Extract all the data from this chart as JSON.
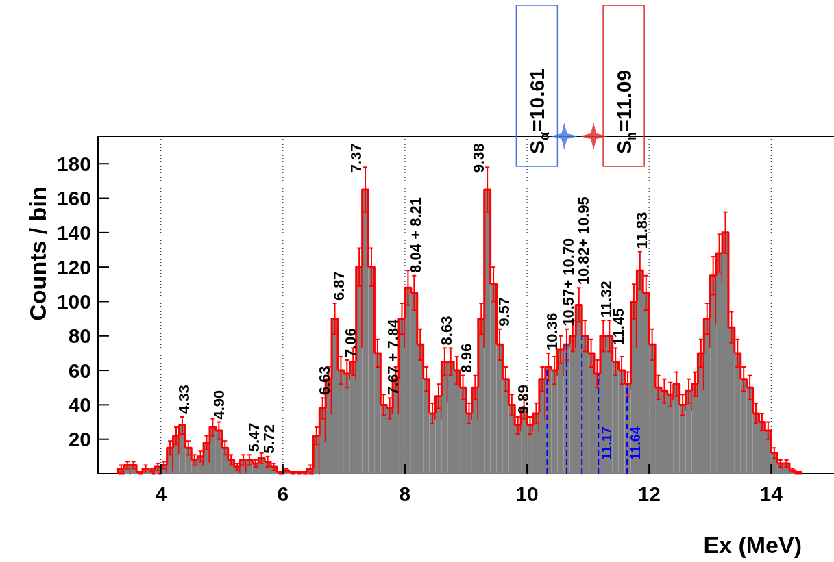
{
  "chart_data": {
    "type": "histogram",
    "xlabel": "Ex (MeV)",
    "ylabel": "Counts / bin",
    "color": "#808080",
    "bins": [
      3.3,
      3.4,
      3.5,
      3.6,
      3.7,
      3.8,
      3.9,
      4.0,
      4.1,
      4.2,
      4.3,
      4.4,
      4.5,
      4.6,
      4.7,
      4.8,
      4.9,
      5.0,
      5.1,
      5.2,
      5.3,
      5.4,
      5.5,
      5.6,
      5.7,
      5.8,
      5.9,
      6.0,
      6.1,
      6.2,
      6.3,
      6.4,
      6.5,
      6.6,
      6.7,
      6.8,
      6.9,
      7.0,
      7.1,
      7.2,
      7.3,
      7.4,
      7.5,
      7.6,
      7.7,
      7.8,
      7.9,
      8.0,
      8.1,
      8.2,
      8.3,
      8.4,
      8.5,
      8.6,
      8.7,
      8.8,
      8.9,
      9.0,
      9.1,
      9.2,
      9.3,
      9.4,
      9.5,
      9.6,
      9.7,
      9.8,
      9.9,
      10.0,
      10.1,
      10.2,
      10.3,
      10.4,
      10.5,
      10.6,
      10.7,
      10.8,
      10.9,
      11.0,
      11.1,
      11.2,
      11.3,
      11.4,
      11.5,
      11.6,
      11.7,
      11.8,
      11.9,
      12.0,
      12.1,
      12.2,
      12.3,
      12.4,
      12.5,
      12.6,
      12.7,
      12.8,
      12.9,
      13.0,
      13.1,
      13.2,
      13.3,
      13.4,
      13.5,
      13.6,
      13.7,
      13.8,
      13.9,
      14.0,
      14.1,
      14.2,
      14.3,
      14.4,
      14.5
    ],
    "values": [
      3,
      5,
      5,
      1,
      3,
      2,
      4,
      5,
      15,
      22,
      28,
      15,
      8,
      10,
      18,
      27,
      25,
      15,
      8,
      4,
      8,
      8,
      6,
      9,
      7,
      4,
      1,
      2,
      1,
      1,
      1,
      3,
      22,
      38,
      55,
      90,
      60,
      58,
      65,
      120,
      165,
      120,
      70,
      40,
      38,
      55,
      90,
      108,
      105,
      75,
      55,
      35,
      45,
      65,
      65,
      60,
      50,
      35,
      50,
      90,
      165,
      110,
      75,
      55,
      40,
      28,
      38,
      28,
      35,
      55,
      62,
      60,
      72,
      75,
      80,
      98,
      80,
      70,
      58,
      80,
      80,
      65,
      60,
      52,
      100,
      118,
      105,
      75,
      50,
      48,
      46,
      52,
      40,
      48,
      52,
      70,
      90,
      115,
      128,
      140,
      85,
      70,
      55,
      50,
      35,
      30,
      25,
      12,
      6,
      6,
      2,
      1
    ],
    "errors": [
      2,
      2,
      2,
      null,
      2,
      1,
      2,
      2,
      4,
      5,
      5,
      4,
      3,
      3,
      4,
      5,
      5,
      4,
      3,
      2,
      3,
      3,
      2,
      3,
      3,
      2,
      null,
      1,
      null,
      null,
      null,
      2,
      5,
      6,
      7,
      9,
      8,
      8,
      8,
      11,
      13,
      11,
      8,
      6,
      6,
      7,
      9,
      10,
      10,
      9,
      7,
      6,
      7,
      8,
      8,
      8,
      7,
      6,
      7,
      9,
      13,
      10,
      9,
      7,
      6,
      5,
      6,
      5,
      6,
      7,
      8,
      8,
      8,
      9,
      9,
      10,
      9,
      8,
      8,
      9,
      9,
      8,
      8,
      7,
      10,
      11,
      10,
      9,
      7,
      7,
      7,
      7,
      6,
      7,
      7,
      8,
      9,
      11,
      11,
      12,
      9,
      8,
      7,
      7,
      6,
      5,
      5,
      3,
      2,
      2,
      1,
      null
    ],
    "xlim": [
      2.97,
      15.03
    ],
    "xticks": [
      4,
      6,
      8,
      10,
      12,
      14
    ],
    "ylim": [
      0,
      196
    ],
    "yticks": [
      20,
      40,
      60,
      80,
      100,
      120,
      140,
      160,
      180
    ],
    "grid": "x",
    "ref_lines": [
      {
        "axis": "x",
        "value": 10.33,
        "color": "#0000ff",
        "line_style": "dashed"
      },
      {
        "axis": "x",
        "value": 10.65,
        "color": "#0000ff",
        "line_style": "dashed"
      },
      {
        "axis": "x",
        "value": 10.9,
        "color": "#0000ff",
        "line_style": "dashed"
      },
      {
        "axis": "x",
        "value": 11.17,
        "label": "11.17",
        "color": "#0000ff",
        "line_style": "dashed"
      },
      {
        "axis": "x",
        "value": 11.64,
        "label": "11.64",
        "color": "#0000ff",
        "line_style": "dashed"
      }
    ],
    "annotations": [
      {
        "text": "4.33",
        "x": 4.33,
        "y": 28
      },
      {
        "text": "4.90",
        "x": 4.9,
        "y": 25
      },
      {
        "text": "5.47",
        "x": 5.47,
        "y": 8
      },
      {
        "text": "5.72",
        "x": 5.72,
        "y": 7
      },
      {
        "text": "6.63",
        "x": 6.63,
        "y": 38
      },
      {
        "text": "6.87",
        "x": 6.87,
        "y": 90
      },
      {
        "text": "7.06",
        "x": 7.06,
        "y": 58
      },
      {
        "text": "7.37",
        "x": 7.37,
        "y": 165
      },
      {
        "text": "7.67 + 7.84",
        "x": 7.75,
        "y": 38
      },
      {
        "text": "8.04 + 8.21",
        "x": 8.12,
        "y": 105
      },
      {
        "text": "8.63",
        "x": 8.63,
        "y": 65
      },
      {
        "text": "8.96",
        "x": 8.96,
        "y": 50
      },
      {
        "text": "9.38",
        "x": 9.38,
        "y": 165
      },
      {
        "text": "9.57",
        "x": 9.57,
        "y": 75
      },
      {
        "text": "9.89",
        "x": 9.89,
        "y": 28
      },
      {
        "text": "10.36",
        "x": 10.36,
        "y": 62
      },
      {
        "text": "10.57+ 10.70",
        "x": 10.63,
        "y": 75
      },
      {
        "text": "10.82+ 10.95",
        "x": 10.88,
        "y": 98
      },
      {
        "text": "11.32",
        "x": 11.25,
        "y": 80
      },
      {
        "text": "11.45",
        "x": 11.45,
        "y": 65
      },
      {
        "text": "11.83",
        "x": 11.83,
        "y": 118
      },
      {
        "text": "S$_{α}$=10.61",
        "x": 10.61,
        "y": 196
      },
      {
        "text": "S$_{n}$=11.09",
        "x": 11.09,
        "y": 196
      }
    ]
  }
}
